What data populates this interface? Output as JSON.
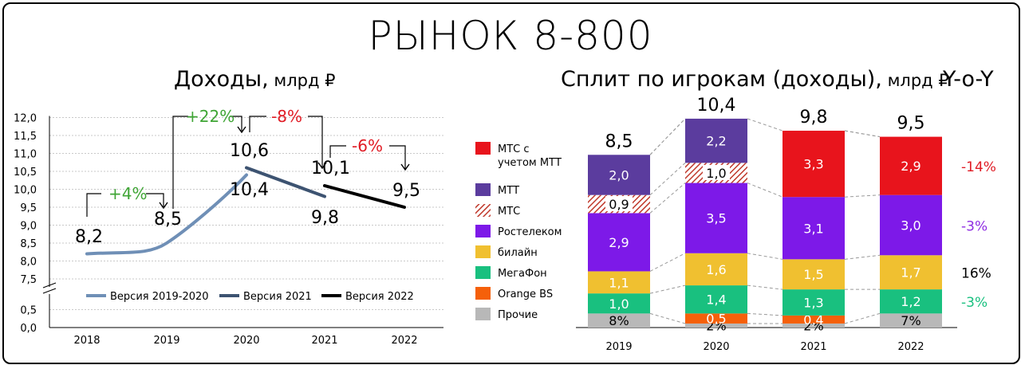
{
  "header": {
    "title": "РЫНОК 8-800",
    "left_title": "Доходы,",
    "left_unit": " млрд ₽",
    "right_title": "Сплит по игрокам (доходы),",
    "right_unit": " млрд ₽",
    "yoy_label": "Y-o-Y"
  },
  "colors": {
    "v2019_2020": "#6f8fb6",
    "v2021": "#3d5371",
    "v2022": "#000000",
    "green": "#3fa535",
    "red": "#e01b24",
    "mts_mtt": "#e8141c",
    "mtt": "#5b3c9e",
    "mts": "#c0392b",
    "rostelecom": "#7d19e8",
    "beeline": "#f0c030",
    "megafon": "#19c07f",
    "orange": "#f5600a",
    "other": "#b8b8b8"
  },
  "chart_data": [
    {
      "type": "line",
      "title": "Доходы, млрд ₽",
      "categories": [
        "2018",
        "2019",
        "2020",
        "2021",
        "2022"
      ],
      "y_ticks": [
        "12,0",
        "11,5",
        "11,0",
        "10,5",
        "10,0",
        "9,5",
        "9,0",
        "8,5",
        "8,0",
        "7,5",
        "0,5",
        "0,0"
      ],
      "y_break": true,
      "grid": true,
      "legend_position": "bottom",
      "series": [
        {
          "name": "Версия 2019-2020",
          "x": [
            "2018",
            "2019",
            "2020"
          ],
          "values": [
            8.2,
            8.5,
            10.4
          ],
          "labels": [
            "8,2",
            "8,5",
            "10,4"
          ]
        },
        {
          "name": "Версия 2021",
          "x": [
            "2020",
            "2021"
          ],
          "values": [
            10.6,
            9.8
          ],
          "labels": [
            "10,6",
            "9,8"
          ]
        },
        {
          "name": "Версия 2022",
          "x": [
            "2021",
            "2022"
          ],
          "values": [
            10.1,
            9.5
          ],
          "labels": [
            "10,1",
            "9,5"
          ]
        }
      ],
      "annotations": [
        {
          "text": "+4%",
          "from": "2018",
          "to": "2019",
          "color": "green"
        },
        {
          "text": "+22%",
          "from": "2019",
          "to": "2020",
          "color": "green"
        },
        {
          "text": "-8%",
          "from": "2020",
          "to": "2021",
          "color": "red"
        },
        {
          "text": "-6%",
          "from": "2021",
          "to": "2022",
          "color": "red"
        }
      ]
    },
    {
      "type": "bar",
      "stacked": true,
      "title": "Сплит по игрокам (доходы), млрд ₽",
      "categories": [
        "2019",
        "2020",
        "2021",
        "2022"
      ],
      "totals": [
        8.5,
        10.4,
        9.8,
        9.5
      ],
      "total_labels": [
        "8,5",
        "10,4",
        "9,8",
        "9,5"
      ],
      "legend_position": "left",
      "series": [
        {
          "name": "Прочие",
          "key": "other",
          "values": [
            0.7,
            0.2,
            0.2,
            0.7
          ],
          "labels": [
            "8%",
            "2%",
            "2%",
            "7%"
          ]
        },
        {
          "name": "Orange BS",
          "key": "orange",
          "values": [
            0,
            0.5,
            0.4,
            0
          ],
          "labels": [
            "",
            "0,5",
            "0,4",
            ""
          ]
        },
        {
          "name": "МегаФон",
          "key": "megafon",
          "values": [
            1.0,
            1.4,
            1.3,
            1.2
          ],
          "labels": [
            "1,0",
            "1,4",
            "1,3",
            "1,2"
          ]
        },
        {
          "name": "билайн",
          "key": "beeline",
          "values": [
            1.1,
            1.6,
            1.5,
            1.7
          ],
          "labels": [
            "1,1",
            "1,6",
            "1,5",
            "1,7"
          ]
        },
        {
          "name": "Ростелеком",
          "key": "rostelecom",
          "values": [
            2.9,
            3.5,
            3.1,
            3.0
          ],
          "labels": [
            "2,9",
            "3,5",
            "3,1",
            "3,0"
          ]
        },
        {
          "name": "МТС",
          "key": "mts",
          "values": [
            0.9,
            1.0,
            0,
            0
          ],
          "labels": [
            "0,9",
            "1,0",
            "",
            ""
          ]
        },
        {
          "name": "МТТ",
          "key": "mtt",
          "values": [
            2.0,
            2.2,
            0,
            0
          ],
          "labels": [
            "2,0",
            "2,2",
            "",
            ""
          ]
        },
        {
          "name": "МТС с учетом МТТ",
          "key": "mts_mtt",
          "values": [
            0,
            0,
            3.3,
            2.9
          ],
          "labels": [
            "",
            "",
            "3,3",
            "2,9"
          ]
        }
      ],
      "legend": [
        {
          "key": "mts_mtt",
          "lines": [
            "МТС с",
            "учетом МТТ"
          ]
        },
        {
          "key": "mtt",
          "lines": [
            "МТТ"
          ]
        },
        {
          "key": "mts",
          "lines": [
            "МТС"
          ]
        },
        {
          "key": "rostelecom",
          "lines": [
            "Ростелеком"
          ]
        },
        {
          "key": "beeline",
          "lines": [
            "билайн"
          ]
        },
        {
          "key": "megafon",
          "lines": [
            "МегаФон"
          ]
        },
        {
          "key": "orange",
          "lines": [
            "Orange BS"
          ]
        },
        {
          "key": "other",
          "lines": [
            "Прочие"
          ]
        }
      ],
      "yoy": [
        {
          "key": "mts_mtt",
          "text": "-14%",
          "color": "#e01b24"
        },
        {
          "key": "rostelecom",
          "text": "-3%",
          "color": "#8e2be2"
        },
        {
          "key": "beeline",
          "text": "16%",
          "color": "#000000"
        },
        {
          "key": "megafon",
          "text": "-3%",
          "color": "#19c07f"
        }
      ]
    }
  ]
}
